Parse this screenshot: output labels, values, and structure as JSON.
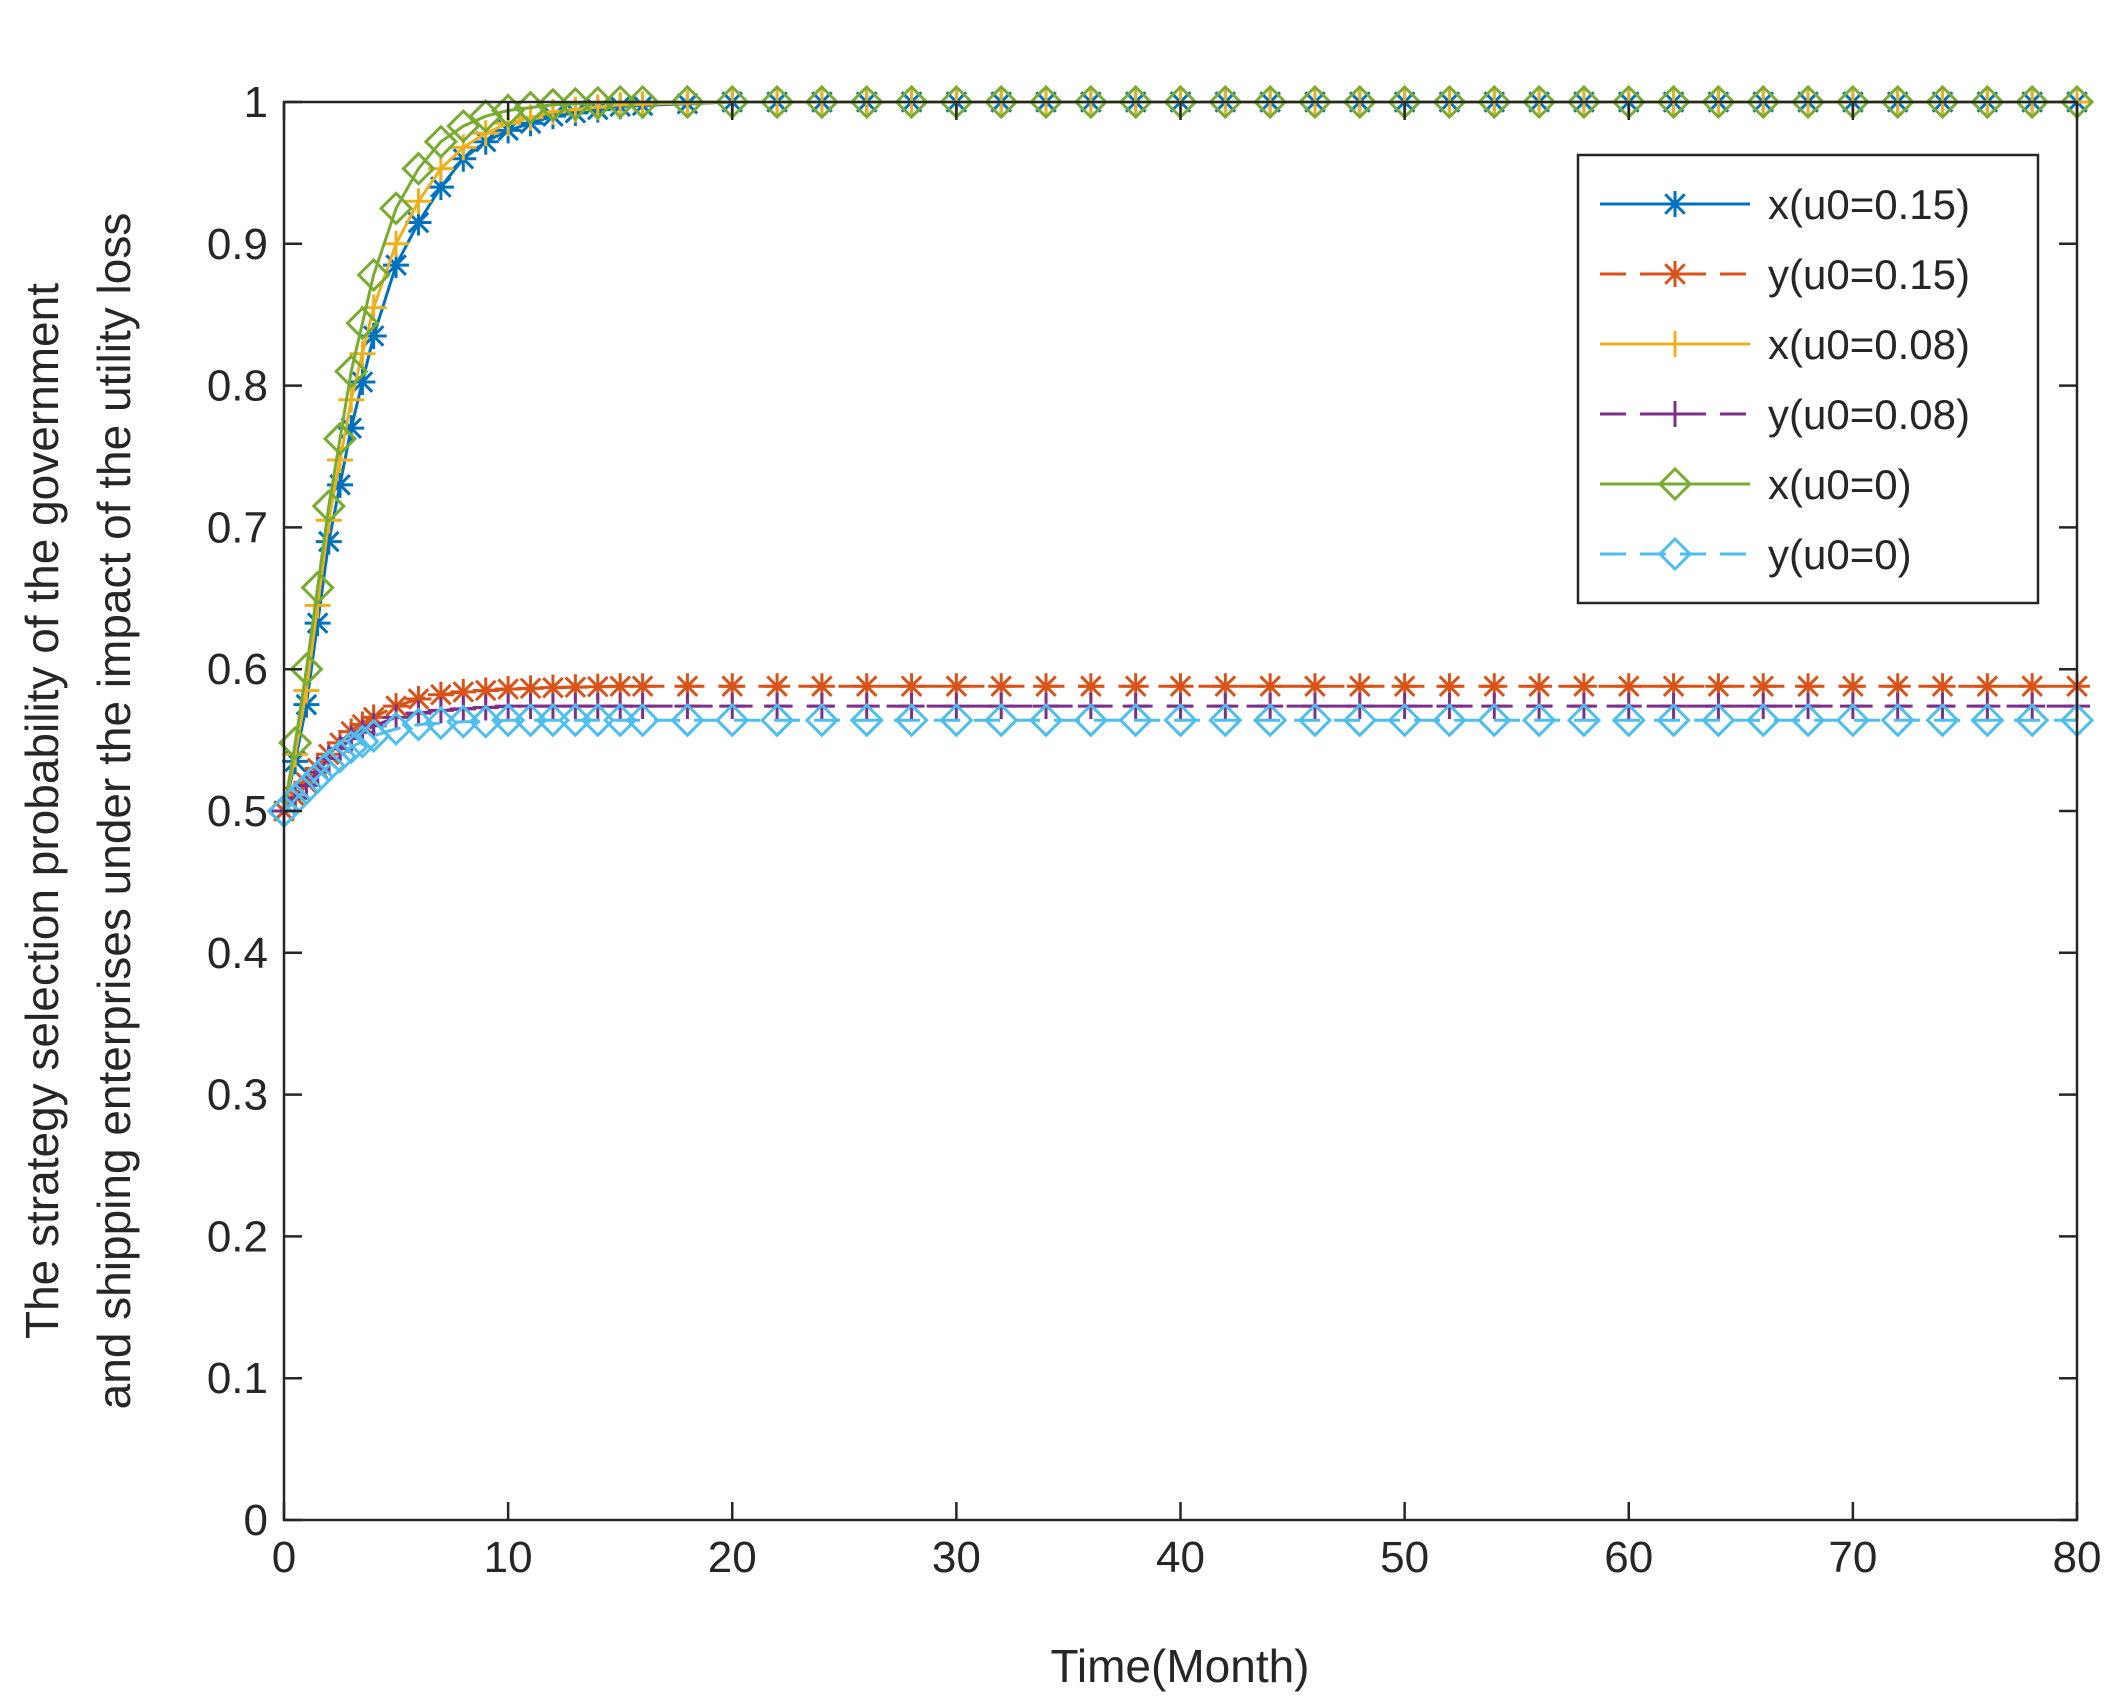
{
  "chart_data": {
    "type": "line",
    "title": "",
    "xlabel": "Time(Month)",
    "ylabel_lines": [
      "The strategy selection probability of the government",
      "and shipping enterprises under the impact of the utility loss"
    ],
    "xlim": [
      0,
      80
    ],
    "ylim": [
      0,
      1
    ],
    "xticks": [
      0,
      10,
      20,
      30,
      40,
      50,
      60,
      70,
      80
    ],
    "yticks": [
      0,
      0.1,
      0.2,
      0.3,
      0.4,
      0.5,
      0.6,
      0.7,
      0.8,
      0.9,
      1
    ],
    "grid": false,
    "legend_position": "top-right",
    "series": [
      {
        "name": "x(u0=0.15)",
        "color": "#0072BD",
        "dash": "solid",
        "marker": "asterisk",
        "x": [
          0,
          0.5,
          1,
          2,
          3,
          4,
          5,
          6,
          7,
          8,
          9,
          10,
          12,
          15,
          20,
          25,
          30,
          40,
          50,
          60,
          70,
          80
        ],
        "values": [
          0.5,
          0.535,
          0.575,
          0.69,
          0.77,
          0.835,
          0.885,
          0.915,
          0.94,
          0.96,
          0.972,
          0.98,
          0.99,
          0.997,
          1.0,
          1.0,
          1.0,
          1.0,
          1.0,
          1.0,
          1.0,
          1.0
        ]
      },
      {
        "name": "y(u0=0.15)",
        "color": "#D95319",
        "dash": "dashed",
        "marker": "asterisk",
        "x": [
          0,
          1,
          2,
          3,
          4,
          5,
          6,
          7,
          8,
          9,
          10,
          12,
          15,
          20,
          30,
          40,
          50,
          60,
          70,
          80
        ],
        "values": [
          0.5,
          0.52,
          0.54,
          0.556,
          0.566,
          0.574,
          0.579,
          0.582,
          0.584,
          0.585,
          0.586,
          0.587,
          0.588,
          0.588,
          0.588,
          0.588,
          0.588,
          0.588,
          0.588,
          0.588
        ]
      },
      {
        "name": "x(u0=0.08)",
        "color": "#EDB120",
        "dash": "solid",
        "marker": "plus",
        "x": [
          0,
          0.5,
          1,
          2,
          3,
          4,
          5,
          6,
          7,
          8,
          9,
          10,
          12,
          15,
          20,
          25,
          30,
          40,
          50,
          60,
          70,
          80
        ],
        "values": [
          0.5,
          0.54,
          0.585,
          0.705,
          0.79,
          0.855,
          0.9,
          0.93,
          0.953,
          0.968,
          0.978,
          0.985,
          0.993,
          0.998,
          1.0,
          1.0,
          1.0,
          1.0,
          1.0,
          1.0,
          1.0,
          1.0
        ]
      },
      {
        "name": "y(u0=0.08)",
        "color": "#7E2F8E",
        "dash": "dashed",
        "marker": "plus",
        "x": [
          0,
          1,
          2,
          3,
          4,
          5,
          6,
          7,
          8,
          9,
          10,
          12,
          15,
          20,
          30,
          40,
          50,
          60,
          70,
          80
        ],
        "values": [
          0.5,
          0.518,
          0.537,
          0.551,
          0.56,
          0.566,
          0.569,
          0.571,
          0.572,
          0.573,
          0.574,
          0.574,
          0.574,
          0.574,
          0.574,
          0.574,
          0.574,
          0.574,
          0.574,
          0.574
        ]
      },
      {
        "name": "x(u0=0)",
        "color": "#77AC30",
        "dash": "solid",
        "marker": "diamond",
        "x": [
          0,
          0.5,
          1,
          2,
          3,
          4,
          5,
          6,
          7,
          8,
          9,
          10,
          12,
          15,
          20,
          25,
          30,
          40,
          50,
          60,
          70,
          80
        ],
        "values": [
          0.5,
          0.548,
          0.6,
          0.715,
          0.81,
          0.878,
          0.925,
          0.953,
          0.972,
          0.983,
          0.99,
          0.994,
          0.998,
          1.0,
          1.0,
          1.0,
          1.0,
          1.0,
          1.0,
          1.0,
          1.0,
          1.0
        ]
      },
      {
        "name": "y(u0=0)",
        "color": "#4DBEEE",
        "dash": "dashed",
        "marker": "diamond",
        "x": [
          0,
          1,
          2,
          3,
          4,
          5,
          6,
          7,
          8,
          9,
          10,
          12,
          15,
          20,
          30,
          40,
          50,
          60,
          70,
          80
        ],
        "values": [
          0.5,
          0.516,
          0.532,
          0.545,
          0.553,
          0.558,
          0.561,
          0.562,
          0.563,
          0.563,
          0.564,
          0.564,
          0.564,
          0.564,
          0.564,
          0.564,
          0.564,
          0.564,
          0.564,
          0.564
        ]
      }
    ]
  }
}
